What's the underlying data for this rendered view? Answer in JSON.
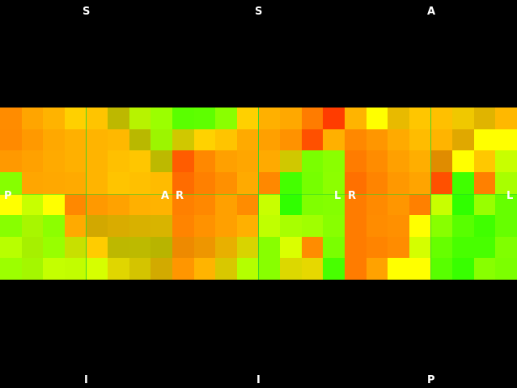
{
  "views": [
    {
      "name": "coronal",
      "top_label": "S",
      "bottom_label": "I",
      "left_label": "P",
      "right_label": "A",
      "cells": [
        [
          "#ff8c00",
          "#ffa500",
          "#ffb300",
          "#ffd000",
          "#ffc400",
          "#bdb800",
          "#b7f300",
          "#9bff00"
        ],
        [
          "#ff8a00",
          "#ff9900",
          "#ffa800",
          "#ffb000",
          "#ffb400",
          "#ffb800",
          "#b9b800",
          "#9cf500"
        ],
        [
          "#ff9900",
          "#ffa100",
          "#ffaa00",
          "#ffb000",
          "#ffb400",
          "#ffc000",
          "#ffc600",
          "#bdb900"
        ],
        [
          "#86ff00",
          "#ffa600",
          "#ffa800",
          "#ffaa00",
          "#ffb400",
          "#ffc400",
          "#ffc000",
          "#ffbb00"
        ],
        [
          "#ffff00",
          "#c8ff00",
          "#ffff00",
          "#ff8800",
          "#ff9900",
          "#ffa200",
          "#ffb000",
          "#ffb300"
        ],
        [
          "#88ff00",
          "#a8f600",
          "#8cff00",
          "#ffaa00",
          "#d2a800",
          "#d9ac00",
          "#d8b100",
          "#d8b400"
        ],
        [
          "#b8ff00",
          "#a6f000",
          "#98ff00",
          "#c8e000",
          "#ffcc00",
          "#bdb800",
          "#bdba00",
          "#b8b400"
        ],
        [
          "#9cff00",
          "#a4f700",
          "#c4ff00",
          "#c2fd00",
          "#d6ff00",
          "#e0d600",
          "#d4c400",
          "#d2aa00"
        ]
      ]
    },
    {
      "name": "sagittal",
      "top_label": "S",
      "bottom_label": "I",
      "left_label": "R",
      "right_label": "L",
      "cells": [
        [
          "#5aff00",
          "#5eff00",
          "#8aff00",
          "#ffd000",
          "#ffb000",
          "#ffa800",
          "#ff7c00",
          "#ff3c00"
        ],
        [
          "#d0c800",
          "#ffd200",
          "#ffc400",
          "#ffaa00",
          "#ffa000",
          "#ff9200",
          "#ff5000",
          "#ffb000"
        ],
        [
          "#ff5c00",
          "#ff8800",
          "#ffa000",
          "#ffa600",
          "#ffaa00",
          "#d0c800",
          "#7aff00",
          "#8aff00"
        ],
        [
          "#ff6c00",
          "#ff8000",
          "#ff9000",
          "#ffaa00",
          "#ff8800",
          "#44ff00",
          "#76ff00",
          "#8cff00"
        ],
        [
          "#ff8000",
          "#ff8800",
          "#ffa000",
          "#ff8c00",
          "#c8ff00",
          "#30ff00",
          "#80ff00",
          "#84ff00"
        ],
        [
          "#ff8400",
          "#ff9200",
          "#ffa000",
          "#ffb000",
          "#c0ff00",
          "#a8ff00",
          "#a0ff00",
          "#88ff00"
        ],
        [
          "#ee8a00",
          "#ee9600",
          "#e8b000",
          "#d8d400",
          "#88ff00",
          "#daff00",
          "#ff8c00",
          "#7aff00"
        ],
        [
          "#ff9600",
          "#ffb400",
          "#d8c800",
          "#b4ff00",
          "#88ff00",
          "#dcd800",
          "#e6d800",
          "#48ff00"
        ]
      ]
    },
    {
      "name": "axial",
      "top_label": "A",
      "bottom_label": "P",
      "left_label": "R",
      "right_label": "L",
      "cells": [
        [
          "#ffb400",
          "#ffff00",
          "#e8ba00",
          "#ffc600",
          "#ffc000",
          "#f0c800",
          "#e0b400",
          "#ffb800"
        ],
        [
          "#ff8800",
          "#ff9600",
          "#ffaa00",
          "#ffbc00",
          "#ffb400",
          "#e0a800",
          "#ffff00",
          "#ffff00"
        ],
        [
          "#ff7c00",
          "#ff8c00",
          "#ffa000",
          "#ffae00",
          "#e08c00",
          "#ffff00",
          "#ffc800",
          "#c8ff00"
        ],
        [
          "#ff7000",
          "#ff8400",
          "#ff9800",
          "#ffa400",
          "#ff5000",
          "#40ff00",
          "#ff8000",
          "#a8ff00"
        ],
        [
          "#ff7c00",
          "#ff8a00",
          "#ff9600",
          "#ff8000",
          "#c8ff00",
          "#30ff00",
          "#98ff00",
          "#66ff00"
        ],
        [
          "#ff7c00",
          "#ff8c00",
          "#ff9000",
          "#ffff00",
          "#88ff00",
          "#58ff00",
          "#40ff00",
          "#66ff00"
        ],
        [
          "#ff7c00",
          "#ff8400",
          "#ff8c00",
          "#d4ff00",
          "#66ff00",
          "#48ff00",
          "#48ff00",
          "#80ff00"
        ],
        [
          "#ff7c00",
          "#ffa200",
          "#ffff00",
          "#ffff00",
          "#58ff00",
          "#38ff00",
          "#88ff00",
          "#7cff00"
        ]
      ]
    }
  ]
}
